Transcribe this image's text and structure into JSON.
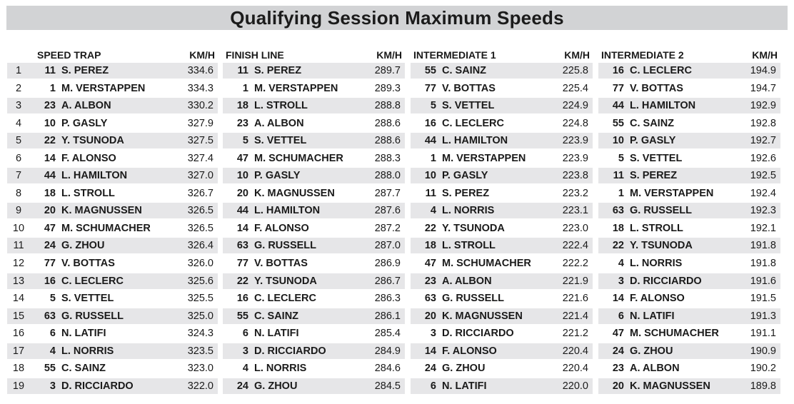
{
  "title": "Qualifying Session Maximum Speeds",
  "unit_label": "KM/H",
  "positions": [
    "1",
    "2",
    "3",
    "4",
    "5",
    "6",
    "7",
    "8",
    "9",
    "10",
    "11",
    "12",
    "13",
    "14",
    "15",
    "16",
    "17",
    "18",
    "19"
  ],
  "columns": [
    {
      "name": "SPEED TRAP",
      "rows": [
        {
          "num": "11",
          "driver": "S. PEREZ",
          "speed": "334.6"
        },
        {
          "num": "1",
          "driver": "M. VERSTAPPEN",
          "speed": "334.3"
        },
        {
          "num": "23",
          "driver": "A. ALBON",
          "speed": "330.2"
        },
        {
          "num": "10",
          "driver": "P. GASLY",
          "speed": "327.9"
        },
        {
          "num": "22",
          "driver": "Y. TSUNODA",
          "speed": "327.5"
        },
        {
          "num": "14",
          "driver": "F. ALONSO",
          "speed": "327.4"
        },
        {
          "num": "44",
          "driver": "L. HAMILTON",
          "speed": "327.0"
        },
        {
          "num": "18",
          "driver": "L. STROLL",
          "speed": "326.7"
        },
        {
          "num": "20",
          "driver": "K. MAGNUSSEN",
          "speed": "326.5"
        },
        {
          "num": "47",
          "driver": "M. SCHUMACHER",
          "speed": "326.5"
        },
        {
          "num": "24",
          "driver": "G. ZHOU",
          "speed": "326.4"
        },
        {
          "num": "77",
          "driver": "V. BOTTAS",
          "speed": "326.0"
        },
        {
          "num": "16",
          "driver": "C. LECLERC",
          "speed": "325.6"
        },
        {
          "num": "5",
          "driver": "S. VETTEL",
          "speed": "325.5"
        },
        {
          "num": "63",
          "driver": "G. RUSSELL",
          "speed": "325.0"
        },
        {
          "num": "6",
          "driver": "N. LATIFI",
          "speed": "324.3"
        },
        {
          "num": "4",
          "driver": "L. NORRIS",
          "speed": "323.5"
        },
        {
          "num": "55",
          "driver": "C. SAINZ",
          "speed": "323.0"
        },
        {
          "num": "3",
          "driver": "D. RICCIARDO",
          "speed": "322.0"
        }
      ]
    },
    {
      "name": "FINISH LINE",
      "rows": [
        {
          "num": "11",
          "driver": "S. PEREZ",
          "speed": "289.7"
        },
        {
          "num": "1",
          "driver": "M. VERSTAPPEN",
          "speed": "289.3"
        },
        {
          "num": "18",
          "driver": "L. STROLL",
          "speed": "288.8"
        },
        {
          "num": "23",
          "driver": "A. ALBON",
          "speed": "288.6"
        },
        {
          "num": "5",
          "driver": "S. VETTEL",
          "speed": "288.6"
        },
        {
          "num": "47",
          "driver": "M. SCHUMACHER",
          "speed": "288.3"
        },
        {
          "num": "10",
          "driver": "P. GASLY",
          "speed": "288.0"
        },
        {
          "num": "20",
          "driver": "K. MAGNUSSEN",
          "speed": "287.7"
        },
        {
          "num": "44",
          "driver": "L. HAMILTON",
          "speed": "287.6"
        },
        {
          "num": "14",
          "driver": "F. ALONSO",
          "speed": "287.2"
        },
        {
          "num": "63",
          "driver": "G. RUSSELL",
          "speed": "287.0"
        },
        {
          "num": "77",
          "driver": "V. BOTTAS",
          "speed": "286.9"
        },
        {
          "num": "22",
          "driver": "Y. TSUNODA",
          "speed": "286.7"
        },
        {
          "num": "16",
          "driver": "C. LECLERC",
          "speed": "286.3"
        },
        {
          "num": "55",
          "driver": "C. SAINZ",
          "speed": "286.1"
        },
        {
          "num": "6",
          "driver": "N. LATIFI",
          "speed": "285.4"
        },
        {
          "num": "3",
          "driver": "D. RICCIARDO",
          "speed": "284.9"
        },
        {
          "num": "4",
          "driver": "L. NORRIS",
          "speed": "284.6"
        },
        {
          "num": "24",
          "driver": "G. ZHOU",
          "speed": "284.5"
        }
      ]
    },
    {
      "name": "INTERMEDIATE 1",
      "rows": [
        {
          "num": "55",
          "driver": "C. SAINZ",
          "speed": "225.8"
        },
        {
          "num": "77",
          "driver": "V. BOTTAS",
          "speed": "225.4"
        },
        {
          "num": "5",
          "driver": "S. VETTEL",
          "speed": "224.9"
        },
        {
          "num": "16",
          "driver": "C. LECLERC",
          "speed": "224.8"
        },
        {
          "num": "44",
          "driver": "L. HAMILTON",
          "speed": "223.9"
        },
        {
          "num": "1",
          "driver": "M. VERSTAPPEN",
          "speed": "223.9"
        },
        {
          "num": "10",
          "driver": "P. GASLY",
          "speed": "223.8"
        },
        {
          "num": "11",
          "driver": "S. PEREZ",
          "speed": "223.2"
        },
        {
          "num": "4",
          "driver": "L. NORRIS",
          "speed": "223.1"
        },
        {
          "num": "22",
          "driver": "Y. TSUNODA",
          "speed": "223.0"
        },
        {
          "num": "18",
          "driver": "L. STROLL",
          "speed": "222.4"
        },
        {
          "num": "47",
          "driver": "M. SCHUMACHER",
          "speed": "222.2"
        },
        {
          "num": "23",
          "driver": "A. ALBON",
          "speed": "221.9"
        },
        {
          "num": "63",
          "driver": "G. RUSSELL",
          "speed": "221.6"
        },
        {
          "num": "20",
          "driver": "K. MAGNUSSEN",
          "speed": "221.4"
        },
        {
          "num": "3",
          "driver": "D. RICCIARDO",
          "speed": "221.2"
        },
        {
          "num": "14",
          "driver": "F. ALONSO",
          "speed": "220.4"
        },
        {
          "num": "24",
          "driver": "G. ZHOU",
          "speed": "220.4"
        },
        {
          "num": "6",
          "driver": "N. LATIFI",
          "speed": "220.0"
        }
      ]
    },
    {
      "name": "INTERMEDIATE 2",
      "rows": [
        {
          "num": "16",
          "driver": "C. LECLERC",
          "speed": "194.9"
        },
        {
          "num": "77",
          "driver": "V. BOTTAS",
          "speed": "194.7"
        },
        {
          "num": "44",
          "driver": "L. HAMILTON",
          "speed": "192.9"
        },
        {
          "num": "55",
          "driver": "C. SAINZ",
          "speed": "192.8"
        },
        {
          "num": "10",
          "driver": "P. GASLY",
          "speed": "192.7"
        },
        {
          "num": "5",
          "driver": "S. VETTEL",
          "speed": "192.6"
        },
        {
          "num": "11",
          "driver": "S. PEREZ",
          "speed": "192.5"
        },
        {
          "num": "1",
          "driver": "M. VERSTAPPEN",
          "speed": "192.4"
        },
        {
          "num": "63",
          "driver": "G. RUSSELL",
          "speed": "192.3"
        },
        {
          "num": "18",
          "driver": "L. STROLL",
          "speed": "192.1"
        },
        {
          "num": "22",
          "driver": "Y. TSUNODA",
          "speed": "191.8"
        },
        {
          "num": "4",
          "driver": "L. NORRIS",
          "speed": "191.8"
        },
        {
          "num": "3",
          "driver": "D. RICCIARDO",
          "speed": "191.6"
        },
        {
          "num": "14",
          "driver": "F. ALONSO",
          "speed": "191.5"
        },
        {
          "num": "6",
          "driver": "N. LATIFI",
          "speed": "191.3"
        },
        {
          "num": "47",
          "driver": "M. SCHUMACHER",
          "speed": "191.1"
        },
        {
          "num": "24",
          "driver": "G. ZHOU",
          "speed": "190.9"
        },
        {
          "num": "23",
          "driver": "A. ALBON",
          "speed": "190.2"
        },
        {
          "num": "20",
          "driver": "K. MAGNUSSEN",
          "speed": "189.8"
        }
      ]
    }
  ]
}
